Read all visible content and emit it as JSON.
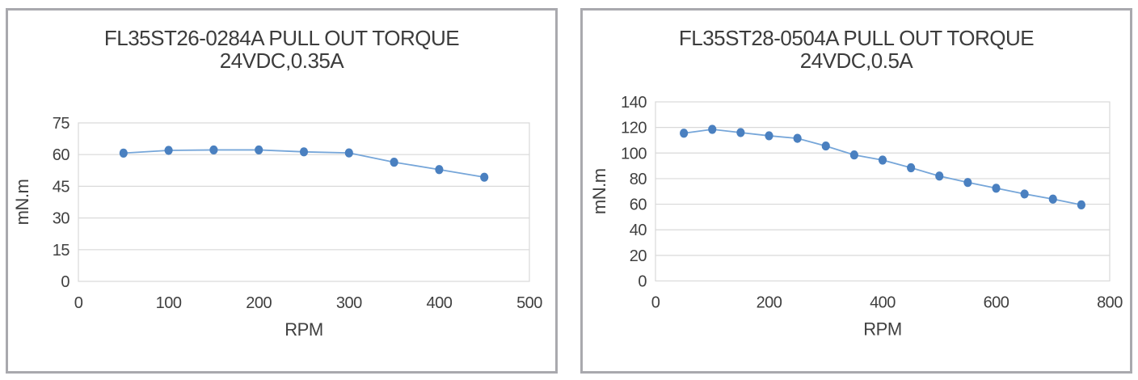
{
  "page": {
    "background_color": "#ffffff",
    "panel_border_color": "#a9a9ae"
  },
  "chart_data": [
    {
      "type": "line",
      "title": "FL35ST26-0284A PULL OUT TORQUE",
      "subtitle": "24VDC,0.35A",
      "xlabel": "RPM",
      "ylabel": "mN.m",
      "x": [
        50,
        100,
        150,
        200,
        250,
        300,
        350,
        400,
        450
      ],
      "y": [
        60.7,
        62.0,
        62.2,
        62.2,
        61.3,
        60.8,
        56.4,
        52.9,
        49.3
      ],
      "xlim": [
        0,
        500
      ],
      "xticks": [
        0,
        100,
        200,
        300,
        400,
        500
      ],
      "ylim": [
        0,
        75
      ],
      "yticks": [
        0,
        15,
        30,
        45,
        60,
        75
      ],
      "grid": "horizontal",
      "legend": "none",
      "line_color": "#76a6d9",
      "marker_color": "#4a80c0",
      "gridline_color": "#d9d9d9",
      "text_color": "#404040"
    },
    {
      "type": "line",
      "title": "FL35ST28-0504A PULL OUT TORQUE",
      "subtitle": "24VDC,0.5A",
      "xlabel": "RPM",
      "ylabel": "mN.m",
      "x": [
        50,
        100,
        150,
        200,
        250,
        300,
        350,
        400,
        450,
        500,
        550,
        600,
        650,
        700,
        750
      ],
      "y": [
        115.5,
        118.5,
        116.0,
        113.5,
        111.5,
        105.5,
        98.5,
        94.5,
        88.5,
        82.0,
        77.0,
        72.5,
        68.0,
        64.0,
        59.5
      ],
      "xlim": [
        0,
        800
      ],
      "xticks": [
        0,
        200,
        400,
        600,
        800
      ],
      "ylim": [
        0,
        140
      ],
      "yticks": [
        0,
        20,
        40,
        60,
        80,
        100,
        120,
        140
      ],
      "grid": "horizontal",
      "legend": "none",
      "line_color": "#76a6d9",
      "marker_color": "#4a80c0",
      "gridline_color": "#d9d9d9",
      "text_color": "#404040"
    }
  ]
}
